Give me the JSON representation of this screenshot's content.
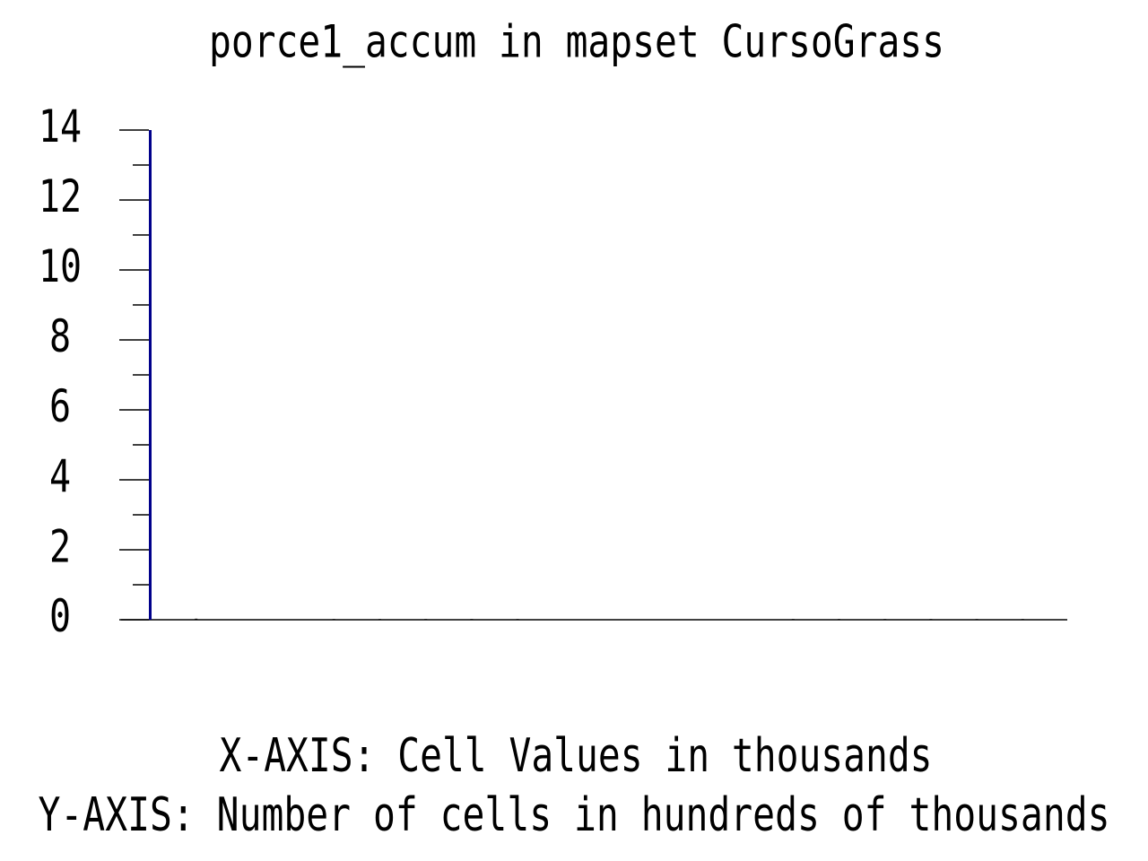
{
  "chart_data": {
    "type": "bar",
    "title": "porce1_accum in mapset CursoGrass",
    "x_label": "X-AXIS: Cell Values in thousands",
    "y_label": "Y-AXIS: Number of cells in hundreds of thousands",
    "categories": [
      null,
      null,
      null,
      null,
      null,
      null,
      null,
      null,
      null,
      null,
      null,
      null,
      null,
      null,
      null,
      null,
      null,
      null,
      null,
      null
    ],
    "values": [
      14,
      0.03,
      0,
      0,
      0.02,
      0.02,
      0.02,
      0.02,
      0.02,
      0,
      0,
      0,
      0,
      0,
      0.02,
      0.02,
      0.02,
      0.02,
      0.02,
      0.02
    ],
    "color": "#00008b",
    "ylim": [
      0,
      14
    ],
    "yticks": [
      0,
      2,
      4,
      6,
      8,
      10,
      12,
      14
    ],
    "yminorticks": [
      1,
      3,
      5,
      7,
      9,
      11,
      13
    ]
  }
}
